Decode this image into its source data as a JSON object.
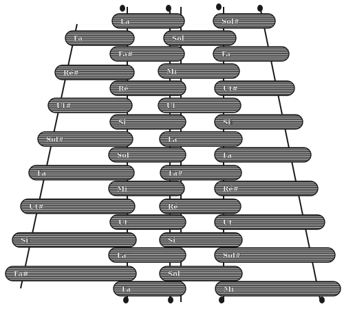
{
  "colors": {
    "bar": "#3a3a3a",
    "bar_hatch": "#ffffff",
    "cord": "#1a1a1a",
    "background": "#ffffff",
    "label": "#ffffff"
  },
  "figure": {
    "columns": [
      {
        "name": "left",
        "bars": [
          {
            "label": "Fa"
          },
          {
            "label": "Ré#"
          },
          {
            "label": "Ut#"
          },
          {
            "label": "Sol#"
          },
          {
            "label": "Fa"
          },
          {
            "label": "Ut#"
          },
          {
            "label": "Si♭"
          },
          {
            "label": "Fa#"
          }
        ]
      },
      {
        "name": "center-left",
        "bars": [
          {
            "label": "La"
          },
          {
            "label": "Fa#"
          },
          {
            "label": "Ré"
          },
          {
            "label": "Si"
          },
          {
            "label": "Sol"
          },
          {
            "label": "Mi"
          },
          {
            "label": "Ut"
          },
          {
            "label": "La"
          },
          {
            "label": "Fa"
          }
        ]
      },
      {
        "name": "center-right",
        "bars": [
          {
            "label": "Sol"
          },
          {
            "label": "Mi"
          },
          {
            "label": "Ut"
          },
          {
            "label": "La"
          },
          {
            "label": "Fa#"
          },
          {
            "label": "Ré"
          },
          {
            "label": "Si"
          },
          {
            "label": "Sol"
          }
        ]
      },
      {
        "name": "right",
        "bars": [
          {
            "label": "Sol#"
          },
          {
            "label": "Fa"
          },
          {
            "label": "Ut#"
          },
          {
            "label": "Si♭"
          },
          {
            "label": "Fa"
          },
          {
            "label": "Ré#"
          },
          {
            "label": "Ut"
          },
          {
            "label": "Sol#"
          },
          {
            "label": "Mi"
          }
        ]
      }
    ]
  }
}
